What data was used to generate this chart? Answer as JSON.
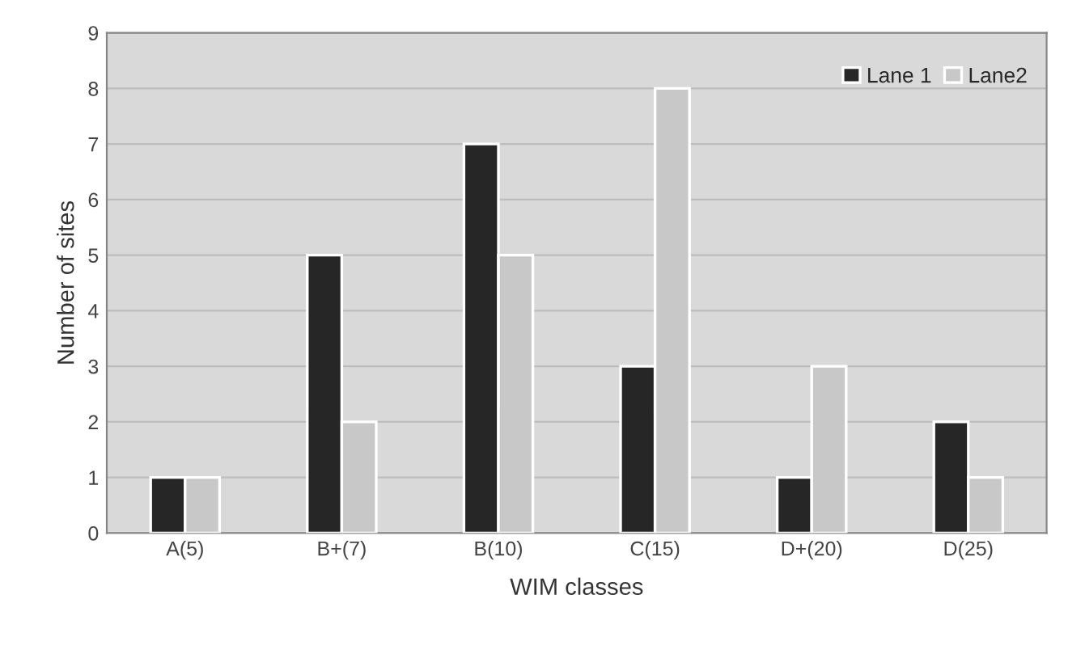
{
  "chart_data": {
    "type": "bar",
    "xlabel": "WIM classes",
    "ylabel": "Number of sites",
    "categories": [
      "A(5)",
      "B+(7)",
      "B(10)",
      "C(15)",
      "D+(20)",
      "D(25)"
    ],
    "series": [
      {
        "name": "Lane 1",
        "color": "#262626",
        "values": [
          1,
          5,
          7,
          3,
          1,
          2
        ]
      },
      {
        "name": "Lane2",
        "color": "#c8c8c8",
        "values": [
          1,
          2,
          5,
          8,
          3,
          1
        ]
      }
    ],
    "ylim": [
      0,
      9
    ],
    "yticks": [
      0,
      1,
      2,
      3,
      4,
      5,
      6,
      7,
      8,
      9
    ],
    "grid": "y",
    "legend": "top right"
  }
}
